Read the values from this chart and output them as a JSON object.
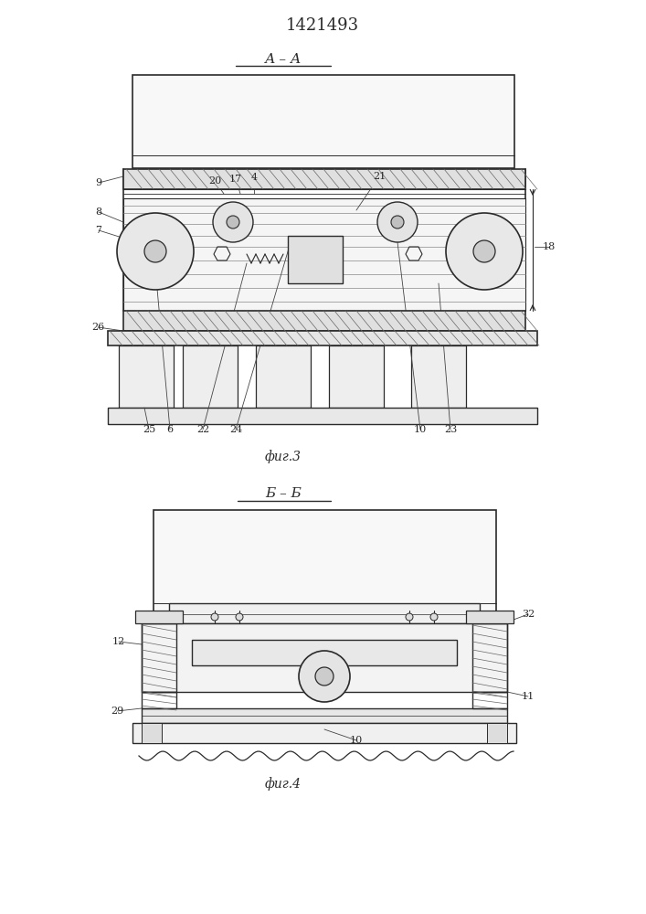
{
  "patent_number": "1421493",
  "fig3_label": "А – А",
  "fig4_label": "Б – Б",
  "fig3_caption": "фиг.3",
  "fig4_caption": "фиг.4",
  "bg_color": "#ffffff",
  "line_color": "#2a2a2a"
}
